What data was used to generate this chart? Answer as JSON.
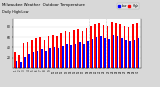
{
  "title": "Milwaukee Weather  Outdoor Temperature",
  "subtitle": "Daily High/Low",
  "background_color": "#d8d8d8",
  "plot_background": "#ffffff",
  "high_color": "#ff0000",
  "low_color": "#0000ff",
  "highs": [
    30,
    25,
    48,
    50,
    55,
    58,
    60,
    55,
    62,
    65,
    62,
    68,
    72,
    70,
    74,
    76,
    72,
    78,
    82,
    85,
    88,
    84,
    82,
    90,
    88,
    86,
    82,
    80,
    85,
    88
  ],
  "lows": [
    14,
    12,
    22,
    28,
    30,
    32,
    36,
    32,
    38,
    40,
    38,
    42,
    46,
    44,
    46,
    50,
    46,
    52,
    56,
    60,
    62,
    58,
    56,
    65,
    62,
    58,
    54,
    52,
    55,
    58
  ],
  "ylim": [
    0,
    95
  ],
  "yticks": [
    20,
    40,
    60,
    80
  ],
  "legend_high": "High",
  "legend_low": "Low",
  "dotted_line_x": [
    17.5,
    21.5
  ],
  "bar_width": 0.38
}
